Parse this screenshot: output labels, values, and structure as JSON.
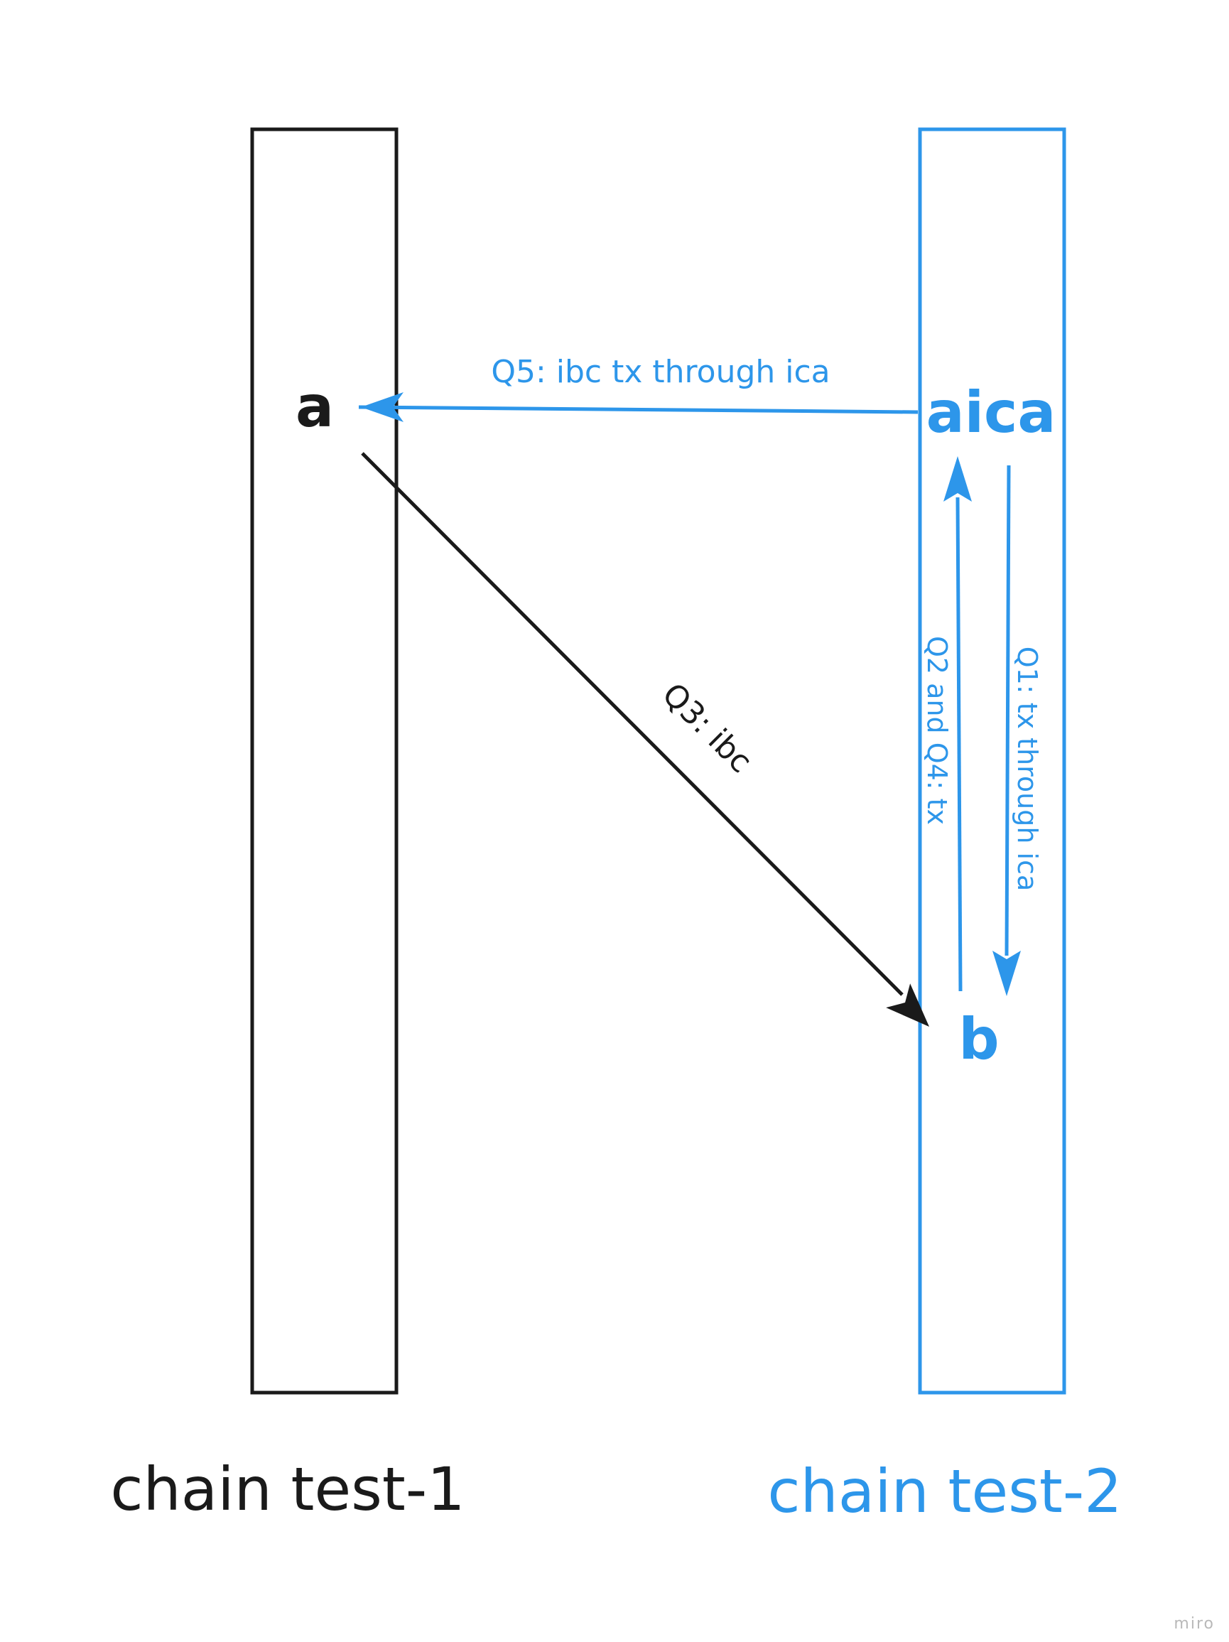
{
  "colors": {
    "chain1": "#1a1a1a",
    "chain2": "#2d96ea",
    "watermark": "#b9b9b9"
  },
  "chains": [
    {
      "label": "chain test-1",
      "color": "#1a1a1a"
    },
    {
      "label": "chain test-2",
      "color": "#2d96ea"
    }
  ],
  "nodes": {
    "a": "a",
    "aica": "aica",
    "b": "b"
  },
  "edges": {
    "q5": {
      "label": "Q5: ibc tx through ica",
      "from": "aica",
      "to": "a"
    },
    "q3": {
      "label": "Q3: ibc",
      "from": "a",
      "to": "b"
    },
    "q2q4": {
      "label": "Q2 and Q4: tx",
      "from": "b",
      "to": "aica"
    },
    "q1": {
      "label": "Q1: tx through ica",
      "from": "aica",
      "to": "b"
    }
  },
  "watermark": "miro"
}
